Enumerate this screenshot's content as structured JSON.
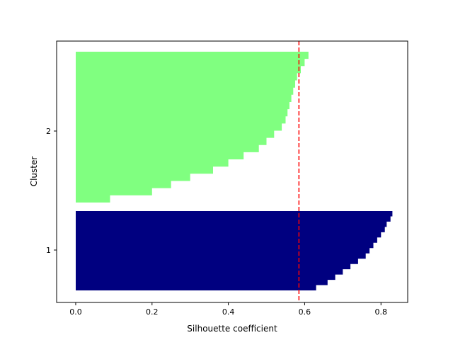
{
  "chart_data": {
    "type": "bar",
    "orientation": "horizontal",
    "xlabel": "Silhouette coefficient",
    "ylabel": "Cluster",
    "xlim": [
      -0.05,
      0.87
    ],
    "x_ticks": [
      0.0,
      0.2,
      0.4,
      0.6,
      0.8
    ],
    "x_tick_labels": [
      "0.0",
      "0.2",
      "0.4",
      "0.6",
      "0.8"
    ],
    "y_ticks": [
      1,
      2
    ],
    "y_tick_labels": [
      "1",
      "2"
    ],
    "grid": false,
    "average_silhouette": 0.585,
    "average_line_color": "#ff0000",
    "clusters": [
      {
        "label": "1",
        "color": "#000080",
        "n_samples": 67,
        "max": 0.83,
        "min": 0.63,
        "quantiles": [
          0.83,
          0.825,
          0.815,
          0.81,
          0.8,
          0.79,
          0.78,
          0.77,
          0.76,
          0.74,
          0.72,
          0.7,
          0.68,
          0.66,
          0.63
        ]
      },
      {
        "label": "2",
        "color": "#80ff80",
        "n_samples": 133,
        "max": 0.61,
        "min": 0.0,
        "quantiles": [
          0.61,
          0.6,
          0.59,
          0.58,
          0.575,
          0.57,
          0.565,
          0.56,
          0.555,
          0.55,
          0.54,
          0.52,
          0.5,
          0.48,
          0.44,
          0.4,
          0.36,
          0.3,
          0.25,
          0.2,
          0.09,
          0.0
        ]
      }
    ]
  }
}
